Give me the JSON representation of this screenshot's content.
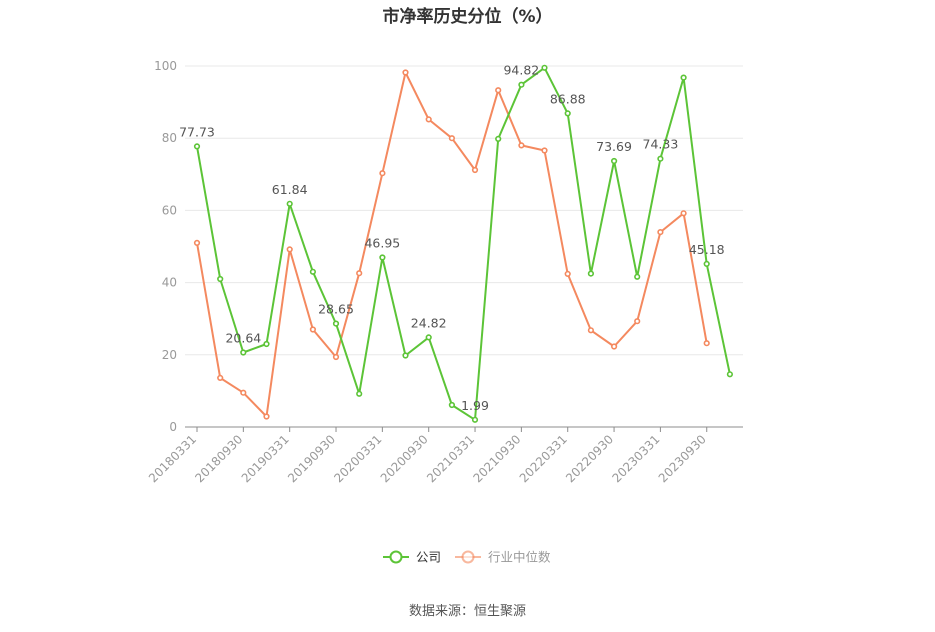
{
  "chart_data": {
    "type": "line",
    "title": "市净率历史分位（%）",
    "xlabel": "",
    "ylabel": "",
    "ylim": [
      0,
      100
    ],
    "yticks": [
      0,
      20,
      40,
      60,
      80,
      100
    ],
    "grid": true,
    "legend_position": "bottom",
    "x": [
      "20180331",
      "20180630",
      "20180930",
      "20181231",
      "20190331",
      "20190630",
      "20190930",
      "20191231",
      "20200331",
      "20200630",
      "20200930",
      "20201231",
      "20210331",
      "20210630",
      "20210930",
      "20211231",
      "20220331",
      "20220630",
      "20220930",
      "20221231",
      "20230331",
      "20230630",
      "20230930",
      "20231231"
    ],
    "x_tick_labels": [
      "20180331",
      "20180930",
      "20190331",
      "20190930",
      "20200331",
      "20200930",
      "20210331",
      "20210930",
      "20220331",
      "20220930",
      "20230331",
      "20230930"
    ],
    "series": [
      {
        "name": "公司",
        "color": "#5cc437",
        "values": [
          77.73,
          41,
          20.64,
          23,
          61.84,
          43,
          28.65,
          9.2,
          46.95,
          19.8,
          24.82,
          6.1,
          1.99,
          79.8,
          94.82,
          99.5,
          86.88,
          42.5,
          73.69,
          41.6,
          74.33,
          96.8,
          45.18,
          14.6
        ],
        "data_labels": {
          "0": "77.73",
          "2": "20.64",
          "4": "61.84",
          "6": "28.65",
          "8": "46.95",
          "10": "24.82",
          "12": "1.99",
          "14": "94.82",
          "16": "86.88",
          "18": "73.69",
          "20": "74.33",
          "22": "45.18"
        }
      },
      {
        "name": "行业中位数",
        "color": "#f4895f",
        "values": [
          51,
          13.6,
          9.5,
          2.9,
          49.2,
          27,
          19.4,
          42.6,
          70.3,
          98.2,
          85.2,
          80,
          71.2,
          93.3,
          78,
          76.6,
          42.4,
          26.8,
          22.3,
          29.3,
          54,
          59.2,
          23.2,
          null
        ]
      }
    ]
  },
  "source": "数据来源：恒生聚源"
}
